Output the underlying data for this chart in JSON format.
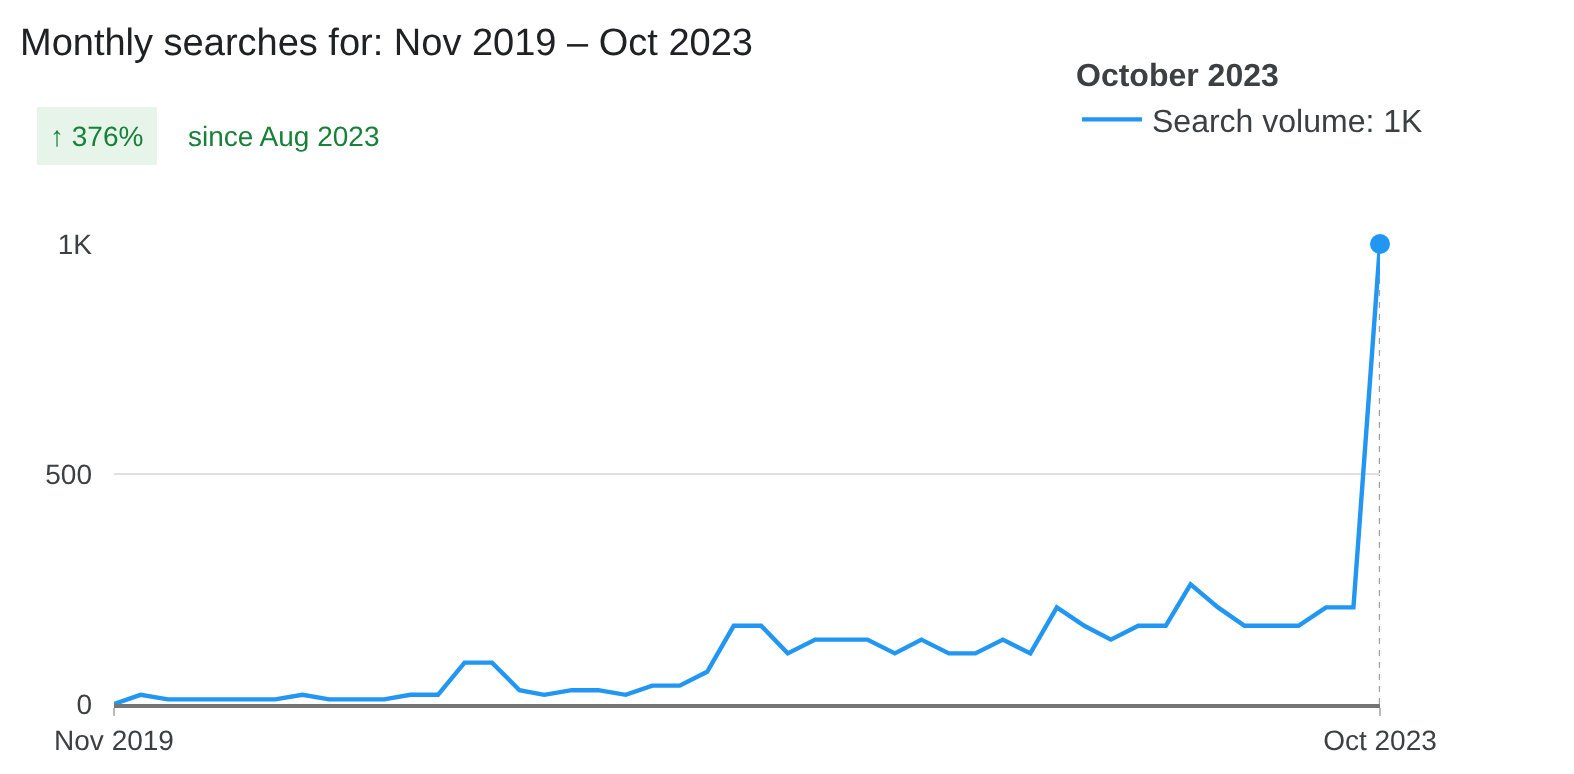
{
  "chart_data": {
    "type": "line",
    "title": "Monthly searches for: Nov 2019 – Oct 2023",
    "annotations": [
      "↑ 376%",
      "since Aug 2023"
    ],
    "legend_title": "October 2023",
    "legend": "top right",
    "x": [
      "2019-11",
      "2019-12",
      "2020-01",
      "2020-02",
      "2020-03",
      "2020-04",
      "2020-05",
      "2020-06",
      "2020-07",
      "2020-08",
      "2020-09",
      "2020-10",
      "2020-11",
      "2020-12",
      "2021-01",
      "2021-02",
      "2021-03",
      "2021-04",
      "2021-05",
      "2021-06",
      "2021-07",
      "2021-08",
      "2021-09",
      "2021-10",
      "2021-11",
      "2021-12",
      "2022-01",
      "2022-02",
      "2022-03",
      "2022-04",
      "2022-05",
      "2022-06",
      "2022-07",
      "2022-08",
      "2022-09",
      "2022-10",
      "2022-11",
      "2022-12",
      "2023-01",
      "2023-02",
      "2023-03",
      "2023-04",
      "2023-05",
      "2023-06",
      "2023-07",
      "2023-08",
      "2023-09",
      "2023-10"
    ],
    "series": [
      {
        "name": "Search volume: 1K",
        "color": "#2196f3",
        "values": [
          0,
          20,
          10,
          10,
          10,
          10,
          10,
          20,
          10,
          10,
          10,
          20,
          20,
          90,
          90,
          30,
          20,
          30,
          30,
          20,
          40,
          40,
          70,
          170,
          170,
          110,
          140,
          140,
          140,
          110,
          140,
          110,
          110,
          140,
          110,
          210,
          170,
          140,
          170,
          170,
          260,
          210,
          170,
          170,
          170,
          210,
          210,
          1000
        ]
      },
      {
        "type": "scatter",
        "color": "#2196f3",
        "marker": "circle",
        "x": [
          "2023-10"
        ],
        "values": [
          1000
        ]
      }
    ],
    "xlim": [
      "2019-11",
      "2023-10"
    ],
    "xticks": [
      {
        "value": "2019-11",
        "label": "Nov 2019"
      },
      {
        "value": "2023-10",
        "label": "Oct 2023"
      }
    ],
    "ylim": [
      0,
      1000
    ],
    "yticks": [
      0,
      500,
      {
        "value": 1000,
        "label": "1K"
      }
    ],
    "grid": "y",
    "line_style": "solid",
    "ref_lines": [
      {
        "axis": "x",
        "value": "2023-10",
        "line_style": "dotted",
        "color": "#9e9e9e"
      }
    ]
  }
}
